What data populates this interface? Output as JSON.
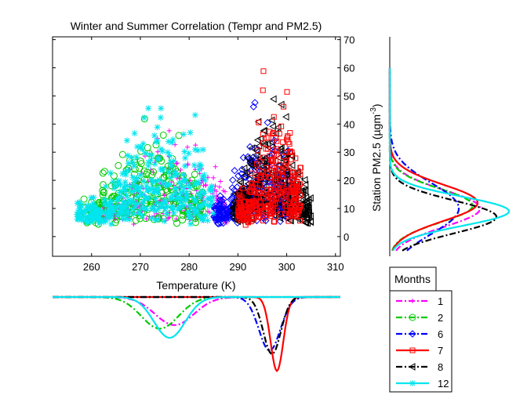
{
  "chart_data": [
    {
      "type": "scatter",
      "title": "Winter and Summer Correlation (Tempr and PM2.5)",
      "xlabel": "Temperature (K)",
      "ylabel": "Station PM2.5 (µgm⁻³)",
      "ylabel_base": "Station PM2.5 (µgm",
      "ylabel_sup": "-3",
      "ylabel_close": ")",
      "xlim": [
        252,
        311
      ],
      "ylim": [
        -7,
        71
      ],
      "xticks": [
        260,
        270,
        280,
        290,
        300,
        310
      ],
      "yticks": [
        0,
        10,
        20,
        30,
        40,
        50,
        60,
        70
      ],
      "grid": false,
      "series": [
        {
          "name": "1",
          "color": "#ff00ff",
          "marker": "plus",
          "x_range": [
            262,
            288
          ],
          "y_peak": 42,
          "center_x": 277
        },
        {
          "name": "2",
          "color": "#00cc00",
          "marker": "circle",
          "x_range": [
            258,
            283
          ],
          "y_peak": 47,
          "center_x": 272
        },
        {
          "name": "6",
          "color": "#0000ff",
          "marker": "diamond",
          "x_range": [
            285,
            301
          ],
          "y_peak": 55,
          "center_x": 295
        },
        {
          "name": "7",
          "color": "#ff0000",
          "marker": "square",
          "x_range": [
            290,
            303
          ],
          "y_peak": 64,
          "center_x": 298
        },
        {
          "name": "8",
          "color": "#000000",
          "marker": "triangle-left",
          "x_range": [
            289,
            305
          ],
          "y_peak": 62,
          "center_x": 297
        },
        {
          "name": "12",
          "color": "#00e5ee",
          "marker": "asterisk",
          "x_range": [
            257,
            285
          ],
          "y_peak": 54,
          "center_x": 275
        }
      ]
    },
    {
      "type": "line",
      "description_axis": "temperature density",
      "series": [
        {
          "name": "1",
          "peak_x": 277,
          "width": 4.0,
          "height": 0.55
        },
        {
          "name": "2",
          "peak_x": 274,
          "width": 3.8,
          "height": 0.62
        },
        {
          "name": "6",
          "peak_x": 296.5,
          "width": 2.2,
          "height": 1.05
        },
        {
          "name": "7",
          "peak_x": 298,
          "width": 1.3,
          "height": 1.45
        },
        {
          "name": "8",
          "peak_x": 297,
          "width": 1.8,
          "height": 1.12
        },
        {
          "name": "12",
          "peak_x": 276,
          "width": 3.2,
          "height": 0.8
        }
      ]
    },
    {
      "type": "line",
      "description_axis": "PM2.5 density",
      "series": [
        {
          "name": "1",
          "peak_y": 10,
          "width": 6.5,
          "height": 0.72
        },
        {
          "name": "2",
          "peak_y": 11,
          "width": 6.0,
          "height": 0.66
        },
        {
          "name": "6",
          "peak_y": 10,
          "width": 9.0,
          "height": 0.55
        },
        {
          "name": "7",
          "peak_y": 12,
          "width": 6.5,
          "height": 0.7
        },
        {
          "name": "8",
          "peak_y": 7,
          "width": 5.8,
          "height": 0.85
        },
        {
          "name": "12",
          "peak_y": 9,
          "width": 5.2,
          "height": 0.95
        }
      ]
    }
  ],
  "legend": {
    "title": "Months",
    "entries": [
      {
        "label": "1",
        "color": "#ff00ff",
        "dash": "8,3,2,3",
        "marker": "plus"
      },
      {
        "label": "2",
        "color": "#00cc00",
        "dash": "8,3,2,3",
        "marker": "circle"
      },
      {
        "label": "6",
        "color": "#0000ff",
        "dash": "8,3,2,3",
        "marker": "diamond"
      },
      {
        "label": "7",
        "color": "#ff0000",
        "dash": "",
        "marker": "square"
      },
      {
        "label": "8",
        "color": "#000000",
        "dash": "8,3,2,3",
        "marker": "triangle-left"
      },
      {
        "label": "12",
        "color": "#00e5ee",
        "dash": "",
        "marker": "asterisk"
      }
    ]
  }
}
